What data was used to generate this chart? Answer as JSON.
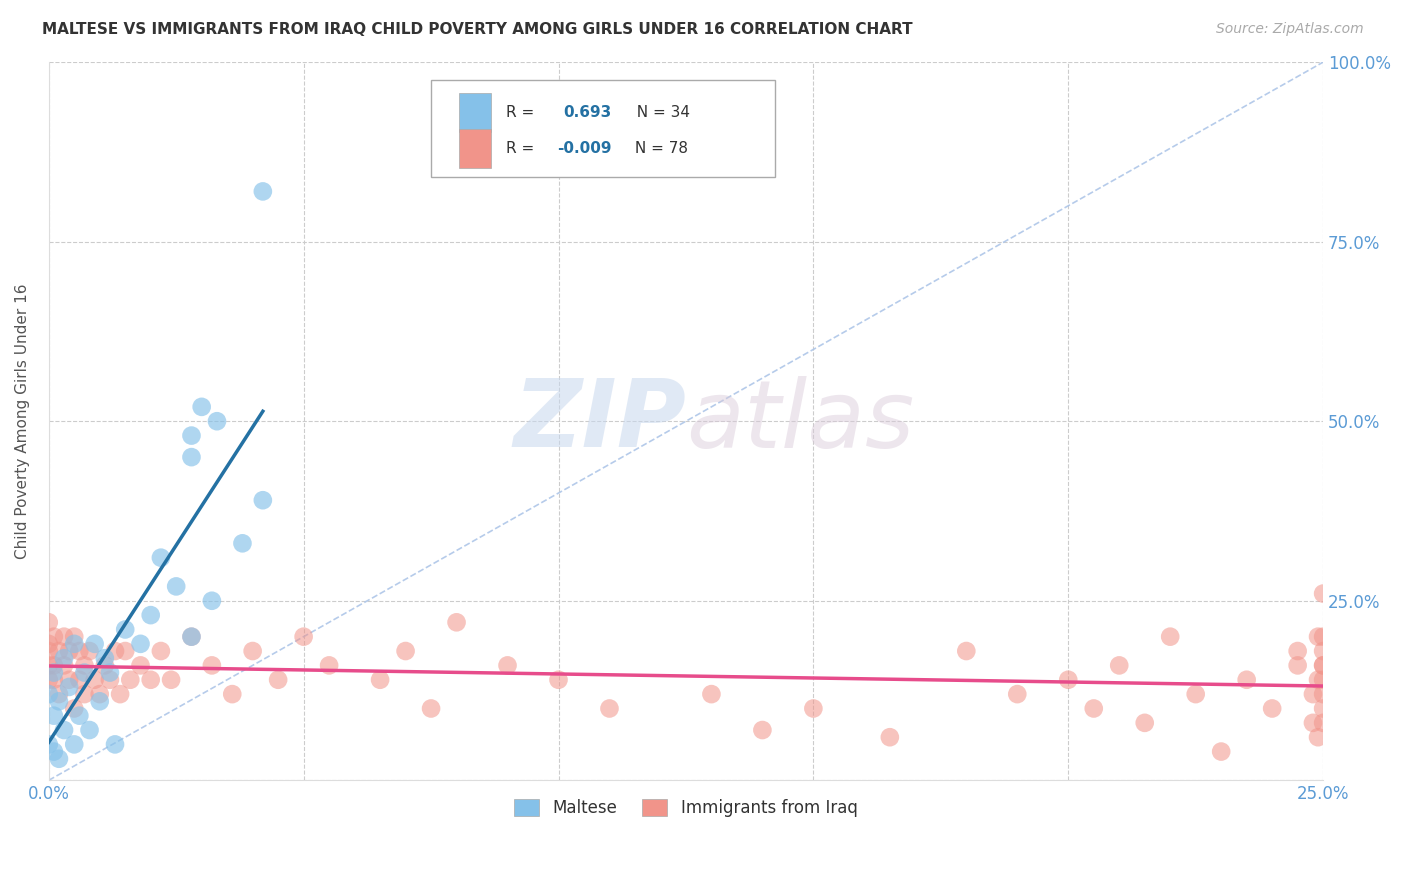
{
  "title": "MALTESE VS IMMIGRANTS FROM IRAQ CHILD POVERTY AMONG GIRLS UNDER 16 CORRELATION CHART",
  "source": "Source: ZipAtlas.com",
  "ylabel": "Child Poverty Among Girls Under 16",
  "xlim": [
    0.0,
    0.25
  ],
  "ylim": [
    0.0,
    1.0
  ],
  "xticks": [
    0.0,
    0.05,
    0.1,
    0.15,
    0.2,
    0.25
  ],
  "yticks": [
    0.0,
    0.25,
    0.5,
    0.75,
    1.0
  ],
  "xtick_labels": [
    "0.0%",
    "",
    "",
    "",
    "",
    "25.0%"
  ],
  "ytick_labels_right": [
    "",
    "25.0%",
    "50.0%",
    "75.0%",
    "100.0%"
  ],
  "legend_r1_label": "R = ",
  "legend_r1_val": "0.693",
  "legend_r1_n": "N = 34",
  "legend_r2_label": "R = ",
  "legend_r2_val": "-0.009",
  "legend_r2_n": "N = 78",
  "blue_color": "#85c1e9",
  "pink_color": "#f1948a",
  "blue_line_color": "#2471a3",
  "pink_line_color": "#e74c8b",
  "watermark_zip": "ZIP",
  "watermark_atlas": "atlas",
  "background_color": "#ffffff",
  "maltese_x": [
    0.0,
    0.0,
    0.001,
    0.001,
    0.001,
    0.002,
    0.002,
    0.003,
    0.003,
    0.004,
    0.005,
    0.005,
    0.006,
    0.007,
    0.008,
    0.009,
    0.01,
    0.011,
    0.012,
    0.013,
    0.015,
    0.018,
    0.02,
    0.022,
    0.025,
    0.028,
    0.032,
    0.038,
    0.042,
    0.028,
    0.033,
    0.042,
    0.028,
    0.03
  ],
  "maltese_y": [
    0.05,
    0.12,
    0.04,
    0.09,
    0.15,
    0.03,
    0.11,
    0.07,
    0.17,
    0.13,
    0.05,
    0.19,
    0.09,
    0.15,
    0.07,
    0.19,
    0.11,
    0.17,
    0.15,
    0.05,
    0.21,
    0.19,
    0.23,
    0.31,
    0.27,
    0.2,
    0.25,
    0.33,
    0.39,
    0.45,
    0.5,
    0.82,
    0.48,
    0.52
  ],
  "iraq_x": [
    0.0,
    0.0,
    0.0,
    0.0,
    0.0,
    0.001,
    0.001,
    0.001,
    0.002,
    0.002,
    0.003,
    0.003,
    0.004,
    0.004,
    0.005,
    0.005,
    0.006,
    0.006,
    0.007,
    0.007,
    0.008,
    0.009,
    0.01,
    0.011,
    0.012,
    0.013,
    0.014,
    0.015,
    0.016,
    0.018,
    0.02,
    0.022,
    0.024,
    0.028,
    0.032,
    0.036,
    0.04,
    0.045,
    0.05,
    0.055,
    0.065,
    0.07,
    0.075,
    0.08,
    0.09,
    0.1,
    0.11,
    0.13,
    0.14,
    0.15,
    0.165,
    0.18,
    0.19,
    0.2,
    0.205,
    0.21,
    0.215,
    0.22,
    0.225,
    0.23,
    0.235,
    0.24,
    0.245,
    0.245,
    0.248,
    0.248,
    0.249,
    0.249,
    0.249,
    0.25,
    0.25,
    0.25,
    0.25,
    0.25,
    0.25,
    0.25,
    0.25,
    0.25
  ],
  "iraq_y": [
    0.18,
    0.14,
    0.19,
    0.16,
    0.22,
    0.16,
    0.2,
    0.14,
    0.18,
    0.12,
    0.2,
    0.16,
    0.14,
    0.18,
    0.1,
    0.2,
    0.14,
    0.18,
    0.12,
    0.16,
    0.18,
    0.14,
    0.12,
    0.16,
    0.14,
    0.18,
    0.12,
    0.18,
    0.14,
    0.16,
    0.14,
    0.18,
    0.14,
    0.2,
    0.16,
    0.12,
    0.18,
    0.14,
    0.2,
    0.16,
    0.14,
    0.18,
    0.1,
    0.22,
    0.16,
    0.14,
    0.1,
    0.12,
    0.07,
    0.1,
    0.06,
    0.18,
    0.12,
    0.14,
    0.1,
    0.16,
    0.08,
    0.2,
    0.12,
    0.04,
    0.14,
    0.1,
    0.16,
    0.18,
    0.08,
    0.12,
    0.06,
    0.2,
    0.14,
    0.18,
    0.1,
    0.16,
    0.08,
    0.12,
    0.14,
    0.2,
    0.16,
    0.26
  ]
}
